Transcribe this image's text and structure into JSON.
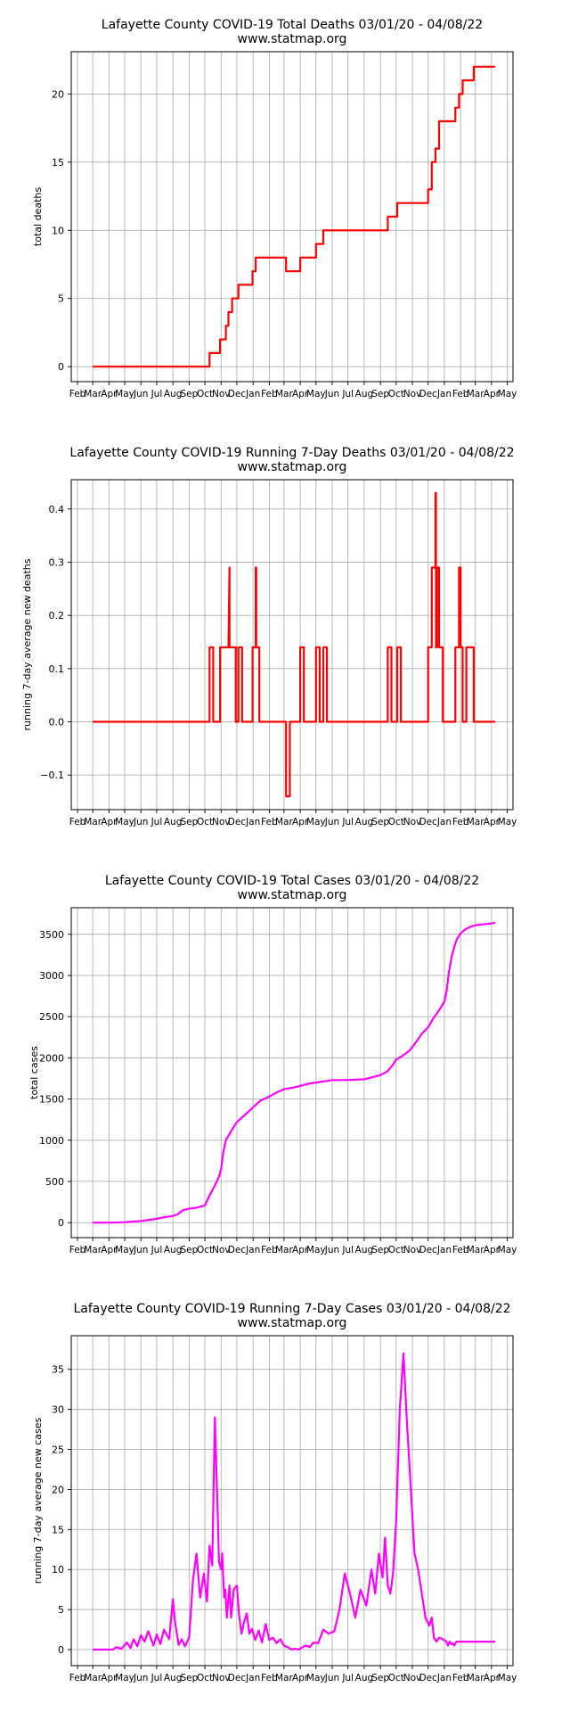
{
  "chart_data": [
    {
      "type": "line",
      "title": "Lafayette County COVID-19 Total Deaths 03/01/20 - 04/08/22",
      "subtitle": "www.statmap.org",
      "ylabel": "total deaths",
      "xlabel": "",
      "color": "#ff0000",
      "ylim": [
        -1.1,
        23.1
      ],
      "yticks": [
        0,
        5,
        10,
        15,
        20
      ],
      "grid": true,
      "series": [
        {
          "x": [
            "2020-03-01",
            "2020-10-10",
            "2020-10-10",
            "2020-10-30",
            "2020-10-30",
            "2020-11-10",
            "2020-11-10",
            "2020-11-15",
            "2020-11-15",
            "2020-11-22",
            "2020-11-22",
            "2020-12-04",
            "2020-12-04",
            "2020-12-31",
            "2020-12-31",
            "2021-01-06",
            "2021-01-06",
            "2021-03-05",
            "2021-03-05",
            "2021-04-01",
            "2021-04-01",
            "2021-05-01",
            "2021-05-01",
            "2021-05-15",
            "2021-05-15",
            "2021-09-15",
            "2021-09-15",
            "2021-10-03",
            "2021-10-03",
            "2021-12-01",
            "2021-12-01",
            "2021-12-08",
            "2021-12-08",
            "2021-12-15",
            "2021-12-15",
            "2021-12-22",
            "2021-12-22",
            "2022-01-22",
            "2022-01-22",
            "2022-01-29",
            "2022-01-29",
            "2022-02-05",
            "2022-02-05",
            "2022-02-26",
            "2022-02-26",
            "2022-04-08"
          ],
          "y": [
            0,
            0,
            1,
            1,
            2,
            2,
            3,
            3,
            4,
            4,
            5,
            5,
            6,
            6,
            7,
            7,
            8,
            8,
            7,
            7,
            8,
            8,
            9,
            9,
            10,
            10,
            11,
            11,
            12,
            12,
            13,
            13,
            15,
            15,
            16,
            16,
            18,
            18,
            19,
            19,
            20,
            20,
            21,
            21,
            22,
            22
          ]
        }
      ]
    },
    {
      "type": "line",
      "title": "Lafayette County COVID-19 Running 7-Day Deaths 03/01/20 - 04/08/22",
      "subtitle": "www.statmap.org",
      "ylabel": "running 7-day average new deaths",
      "xlabel": "",
      "color": "#ff0000",
      "ylim": [
        -0.165,
        0.455
      ],
      "yticks": [
        -0.1,
        0.0,
        0.1,
        0.2,
        0.3,
        0.4
      ],
      "grid": true,
      "series": [
        {
          "x": [
            "2020-03-01",
            "2020-10-10",
            "2020-10-10",
            "2020-10-17",
            "2020-10-17",
            "2020-10-30",
            "2020-10-30",
            "2020-11-06",
            "2020-11-06",
            "2020-11-10",
            "2020-11-10",
            "2020-11-15",
            "2020-11-15",
            "2020-11-17",
            "2020-11-17",
            "2020-11-22",
            "2020-11-22",
            "2020-11-29",
            "2020-11-29",
            "2020-12-04",
            "2020-12-04",
            "2020-12-11",
            "2020-12-11",
            "2020-12-31",
            "2020-12-31",
            "2021-01-06",
            "2021-01-06",
            "2021-01-07",
            "2021-01-07",
            "2021-01-13",
            "2021-01-13",
            "2021-03-05",
            "2021-03-05",
            "2021-03-12",
            "2021-03-12",
            "2021-04-01",
            "2021-04-01",
            "2021-04-08",
            "2021-04-08",
            "2021-05-01",
            "2021-05-01",
            "2021-05-08",
            "2021-05-08",
            "2021-05-15",
            "2021-05-15",
            "2021-05-22",
            "2021-05-22",
            "2021-09-15",
            "2021-09-15",
            "2021-09-22",
            "2021-09-22",
            "2021-10-03",
            "2021-10-03",
            "2021-10-10",
            "2021-10-10",
            "2021-12-01",
            "2021-12-01",
            "2021-12-08",
            "2021-12-08",
            "2021-12-15",
            "2021-12-15",
            "2021-12-16",
            "2021-12-16",
            "2021-12-18",
            "2021-12-18",
            "2021-12-22",
            "2021-12-22",
            "2021-12-29",
            "2021-12-29",
            "2022-01-22",
            "2022-01-22",
            "2022-01-29",
            "2022-01-29",
            "2022-02-01",
            "2022-02-01",
            "2022-02-05",
            "2022-02-05",
            "2022-02-12",
            "2022-02-12",
            "2022-02-26",
            "2022-02-26",
            "2022-03-05",
            "2022-03-05",
            "2022-04-08"
          ],
          "y": [
            0,
            0,
            0.14,
            0.14,
            0,
            0,
            0.14,
            0.14,
            0.14,
            0.14,
            0.14,
            0.14,
            0.14,
            0.29,
            0.14,
            0.14,
            0.14,
            0.14,
            0,
            0,
            0.14,
            0.14,
            0,
            0,
            0.14,
            0.14,
            0.29,
            0.29,
            0.14,
            0.14,
            0,
            0,
            -0.14,
            -0.14,
            0,
            0,
            0.14,
            0.14,
            0,
            0,
            0.14,
            0.14,
            0,
            0,
            0.14,
            0.14,
            0,
            0,
            0.14,
            0.14,
            0,
            0,
            0.14,
            0.14,
            0,
            0,
            0.14,
            0.14,
            0.29,
            0.29,
            0.43,
            0.43,
            0.14,
            0.14,
            0.29,
            0.29,
            0.14,
            0.14,
            0,
            0,
            0.14,
            0.14,
            0.29,
            0.29,
            0.14,
            0.14,
            0,
            0,
            0.14,
            0.14,
            0,
            0,
            0,
            0
          ]
        }
      ]
    },
    {
      "type": "line",
      "title": "Lafayette County COVID-19 Total Cases 03/01/20 - 04/08/22",
      "subtitle": "www.statmap.org",
      "ylabel": "total cases",
      "xlabel": "",
      "color": "#ff00ff",
      "ylim": [
        -182,
        3822
      ],
      "yticks": [
        0,
        500,
        1000,
        1500,
        2000,
        2500,
        3000,
        3500
      ],
      "grid": true,
      "series": [
        {
          "x": [
            "2020-03-01",
            "2020-04-01",
            "2020-05-01",
            "2020-06-01",
            "2020-06-25",
            "2020-07-15",
            "2020-08-01",
            "2020-08-10",
            "2020-08-20",
            "2020-09-01",
            "2020-09-15",
            "2020-10-01",
            "2020-10-10",
            "2020-10-20",
            "2020-10-28",
            "2020-11-01",
            "2020-11-05",
            "2020-11-10",
            "2020-11-20",
            "2020-12-01",
            "2020-12-15",
            "2021-01-01",
            "2021-01-15",
            "2021-02-01",
            "2021-02-15",
            "2021-03-01",
            "2021-03-20",
            "2021-04-01",
            "2021-04-20",
            "2021-05-01",
            "2021-06-01",
            "2021-07-01",
            "2021-08-01",
            "2021-08-20",
            "2021-09-01",
            "2021-09-15",
            "2021-09-25",
            "2021-10-01",
            "2021-10-10",
            "2021-10-25",
            "2021-11-01",
            "2021-11-10",
            "2021-11-20",
            "2021-12-01",
            "2021-12-10",
            "2021-12-20",
            "2022-01-01",
            "2022-01-05",
            "2022-01-10",
            "2022-01-15",
            "2022-01-20",
            "2022-01-25",
            "2022-02-01",
            "2022-02-10",
            "2022-02-20",
            "2022-03-01",
            "2022-03-15",
            "2022-04-01",
            "2022-04-08"
          ],
          "y": [
            0,
            0,
            5,
            20,
            40,
            65,
            80,
            100,
            150,
            170,
            180,
            210,
            330,
            450,
            560,
            650,
            850,
            1000,
            1110,
            1220,
            1300,
            1400,
            1480,
            1530,
            1580,
            1620,
            1640,
            1660,
            1690,
            1700,
            1730,
            1730,
            1740,
            1770,
            1790,
            1840,
            1920,
            1980,
            2010,
            2080,
            2130,
            2210,
            2300,
            2370,
            2470,
            2560,
            2680,
            2800,
            3050,
            3230,
            3350,
            3440,
            3510,
            3560,
            3590,
            3610,
            3620,
            3630,
            3640
          ]
        }
      ]
    },
    {
      "type": "line",
      "title": "Lafayette County COVID-19 Running 7-Day Cases 03/01/20 - 04/08/22",
      "subtitle": "www.statmap.org",
      "ylabel": "running 7-day average new cases",
      "xlabel": "",
      "color": "#ff00ff",
      "ylim": [
        -2,
        39.2
      ],
      "yticks": [
        0,
        5,
        10,
        15,
        20,
        25,
        30,
        35
      ],
      "grid": true,
      "series": [
        {
          "x": [
            "2020-03-01",
            "2020-04-08",
            "2020-04-15",
            "2020-04-25",
            "2020-05-05",
            "2020-05-12",
            "2020-05-18",
            "2020-05-25",
            "2020-06-01",
            "2020-06-08",
            "2020-06-15",
            "2020-06-25",
            "2020-07-01",
            "2020-07-08",
            "2020-07-15",
            "2020-07-25",
            "2020-08-01",
            "2020-08-05",
            "2020-08-12",
            "2020-08-18",
            "2020-08-24",
            "2020-09-01",
            "2020-09-08",
            "2020-09-15",
            "2020-09-22",
            "2020-09-29",
            "2020-10-05",
            "2020-10-10",
            "2020-10-15",
            "2020-10-20",
            "2020-10-25",
            "2020-10-28",
            "2020-11-01",
            "2020-11-03",
            "2020-11-05",
            "2020-11-07",
            "2020-11-09",
            "2020-11-12",
            "2020-11-17",
            "2020-11-20",
            "2020-11-25",
            "2020-12-01",
            "2020-12-05",
            "2020-12-10",
            "2020-12-15",
            "2020-12-20",
            "2020-12-25",
            "2020-12-30",
            "2021-01-05",
            "2021-01-12",
            "2021-01-18",
            "2021-01-25",
            "2021-02-01",
            "2021-02-08",
            "2021-02-15",
            "2021-02-22",
            "2021-03-01",
            "2021-03-08",
            "2021-03-15",
            "2021-03-22",
            "2021-03-29",
            "2021-04-05",
            "2021-04-12",
            "2021-04-19",
            "2021-04-26",
            "2021-05-05",
            "2021-05-15",
            "2021-05-25",
            "2021-06-05",
            "2021-06-15",
            "2021-06-25",
            "2021-07-05",
            "2021-07-15",
            "2021-07-25",
            "2021-08-05",
            "2021-08-15",
            "2021-08-22",
            "2021-08-29",
            "2021-09-05",
            "2021-09-10",
            "2021-09-15",
            "2021-09-20",
            "2021-09-25",
            "2021-10-01",
            "2021-10-08",
            "2021-10-15",
            "2021-10-22",
            "2021-10-29",
            "2021-11-05",
            "2021-11-12",
            "2021-11-19",
            "2021-11-26",
            "2021-12-03",
            "2021-12-08",
            "2021-12-12",
            "2021-12-17",
            "2021-12-22",
            "2021-12-29",
            "2022-01-05",
            "2022-01-08",
            "2022-01-11",
            "2022-01-14",
            "2022-01-17",
            "2022-01-20",
            "2022-01-24",
            "2022-01-28",
            "2022-02-01",
            "2022-02-05",
            "2022-02-10",
            "2022-02-15",
            "2022-02-20",
            "2022-02-28",
            "2022-03-07",
            "2022-03-14",
            "2022-03-21",
            "2022-03-28",
            "2022-04-04",
            "2022-04-08"
          ],
          "y": [
            0,
            0,
            0.3,
            0.1,
            0.9,
            0.2,
            1.3,
            0.4,
            1.8,
            1,
            2.3,
            0.5,
            1.9,
            0.7,
            2.5,
            1.3,
            6.3,
            3.5,
            0.6,
            1.3,
            0.4,
            1.5,
            8.5,
            12,
            6.5,
            9.5,
            6,
            13,
            10.5,
            29,
            18,
            11,
            10,
            12,
            9,
            6.5,
            7.5,
            4,
            8,
            4,
            7.5,
            8,
            4.5,
            2,
            3.5,
            4.5,
            2,
            2.6,
            1.2,
            2.4,
            0.9,
            3.2,
            1.2,
            1.5,
            0.8,
            1.3,
            0.5,
            0.3,
            0,
            0.1,
            0,
            0.3,
            0.5,
            0.3,
            0.9,
            0.8,
            2.5,
            2,
            2.3,
            5,
            9.5,
            7,
            4,
            7.5,
            5.5,
            10,
            7,
            12,
            9,
            14,
            8,
            7,
            9.5,
            16,
            30,
            37,
            28,
            20,
            12,
            10,
            7,
            4,
            3,
            4,
            1.5,
            1,
            1.5,
            1.3,
            1,
            0.5,
            1,
            0.7,
            0.8,
            0.5,
            1,
            1,
            1,
            1,
            1,
            1,
            1,
            1,
            1,
            1,
            1,
            1,
            1,
            1
          ]
        }
      ]
    }
  ],
  "x_axis": {
    "tick_labels": [
      "Feb",
      "Mar",
      "Apr",
      "May",
      "Jun",
      "Jul",
      "Aug",
      "Sep",
      "Oct",
      "Nov",
      "Dec",
      "Jan",
      "Feb",
      "Mar",
      "Apr",
      "May",
      "Jun",
      "Jul",
      "Aug",
      "Sep",
      "Oct",
      "Nov",
      "Dec",
      "Jan",
      "Feb",
      "Mar",
      "Apr",
      "May"
    ],
    "tick_dates": [
      "2020-02-01",
      "2020-03-01",
      "2020-04-01",
      "2020-05-01",
      "2020-06-01",
      "2020-07-01",
      "2020-08-01",
      "2020-09-01",
      "2020-10-01",
      "2020-11-01",
      "2020-12-01",
      "2021-01-01",
      "2021-02-01",
      "2021-03-01",
      "2021-04-01",
      "2021-05-01",
      "2021-06-01",
      "2021-07-01",
      "2021-08-01",
      "2021-09-01",
      "2021-10-01",
      "2021-11-01",
      "2021-12-01",
      "2022-01-01",
      "2022-02-01",
      "2022-03-01",
      "2022-04-01",
      "2022-05-01"
    ],
    "range": [
      "2020-01-20",
      "2022-05-12"
    ]
  }
}
